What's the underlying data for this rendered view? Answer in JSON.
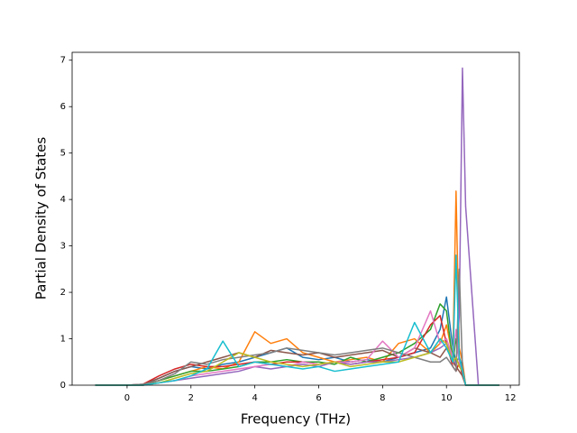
{
  "chart_data": {
    "type": "line",
    "xlabel": "Frequency (THz)",
    "ylabel": "Partial Density of States",
    "xlim": [
      -1.72,
      12.28
    ],
    "ylim": [
      0,
      7.17
    ],
    "xticks": [
      0,
      2,
      4,
      6,
      8,
      10,
      12
    ],
    "yticks": [
      0,
      1,
      2,
      3,
      4,
      5,
      6,
      7
    ],
    "x": [
      -1,
      -0.5,
      0,
      0.5,
      1,
      1.5,
      2,
      2.5,
      3,
      3.5,
      4,
      4.5,
      5,
      5.5,
      6,
      6.5,
      7,
      7.5,
      8,
      8.5,
      9,
      9.5,
      9.8,
      10,
      10.2,
      10.3,
      10.4,
      10.5,
      10.6,
      11,
      11.65
    ],
    "series": [
      {
        "color": "#1f77b4",
        "values": [
          0,
          0,
          0,
          0.02,
          0.15,
          0.3,
          0.4,
          0.35,
          0.45,
          0.5,
          0.6,
          0.7,
          0.8,
          0.6,
          0.55,
          0.6,
          0.5,
          0.55,
          0.5,
          0.6,
          0.7,
          0.8,
          1.2,
          1.9,
          0.8,
          0.5,
          0.6,
          0.4,
          0,
          0,
          0
        ]
      },
      {
        "color": "#ff7f0e",
        "values": [
          0,
          0,
          0,
          0.01,
          0.1,
          0.2,
          0.3,
          0.4,
          0.35,
          0.5,
          1.15,
          0.9,
          1.0,
          0.7,
          0.6,
          0.5,
          0.55,
          0.6,
          0.5,
          0.9,
          1.0,
          0.7,
          0.9,
          1.3,
          0.6,
          4.18,
          0.8,
          0.5,
          0,
          0,
          0
        ]
      },
      {
        "color": "#2ca02c",
        "values": [
          0,
          0,
          0,
          0,
          0.1,
          0.2,
          0.3,
          0.3,
          0.35,
          0.4,
          0.5,
          0.5,
          0.55,
          0.5,
          0.5,
          0.45,
          0.6,
          0.5,
          0.6,
          0.7,
          0.9,
          1.2,
          1.75,
          1.6,
          0.5,
          1.0,
          0.6,
          0.3,
          0,
          0,
          0
        ]
      },
      {
        "color": "#d62728",
        "values": [
          0,
          0,
          0,
          0.02,
          0.2,
          0.35,
          0.45,
          0.4,
          0.4,
          0.45,
          0.5,
          0.45,
          0.5,
          0.5,
          0.45,
          0.5,
          0.45,
          0.5,
          0.55,
          0.6,
          0.7,
          1.3,
          1.5,
          0.9,
          0.4,
          0.3,
          0.5,
          0.2,
          0,
          0,
          0
        ]
      },
      {
        "color": "#9467bd",
        "values": [
          0,
          0,
          0,
          0,
          0.05,
          0.1,
          0.15,
          0.2,
          0.25,
          0.3,
          0.4,
          0.35,
          0.4,
          0.45,
          0.4,
          0.5,
          0.45,
          0.5,
          0.5,
          0.55,
          0.6,
          0.7,
          0.8,
          0.9,
          0.6,
          0.4,
          1.5,
          6.83,
          3.85,
          0,
          0
        ]
      },
      {
        "color": "#8c564b",
        "values": [
          0,
          0,
          0,
          0.01,
          0.15,
          0.3,
          0.4,
          0.5,
          0.6,
          0.7,
          0.6,
          0.75,
          0.7,
          0.65,
          0.7,
          0.6,
          0.65,
          0.7,
          0.75,
          0.6,
          0.8,
          0.7,
          0.6,
          0.8,
          0.5,
          0.4,
          0.3,
          0.2,
          0,
          0,
          0
        ]
      },
      {
        "color": "#e377c2",
        "values": [
          0,
          0,
          0,
          0,
          0.05,
          0.1,
          0.2,
          0.25,
          0.3,
          0.35,
          0.4,
          0.45,
          0.4,
          0.5,
          0.45,
          0.5,
          0.5,
          0.55,
          0.95,
          0.6,
          0.8,
          1.6,
          0.9,
          1.0,
          0.6,
          1.2,
          0.5,
          0.3,
          0,
          0,
          0
        ]
      },
      {
        "color": "#7f7f7f",
        "values": [
          0,
          0,
          0,
          0.02,
          0.1,
          0.25,
          0.5,
          0.45,
          0.55,
          0.6,
          0.65,
          0.7,
          0.8,
          0.75,
          0.7,
          0.65,
          0.7,
          0.75,
          0.8,
          0.7,
          0.6,
          0.5,
          0.5,
          0.6,
          0.4,
          0.3,
          2.5,
          0.4,
          0,
          0,
          0
        ]
      },
      {
        "color": "#bcbd22",
        "values": [
          0,
          0,
          0,
          0,
          0.05,
          0.15,
          0.25,
          0.3,
          0.5,
          0.7,
          0.6,
          0.5,
          0.45,
          0.4,
          0.45,
          0.5,
          0.4,
          0.45,
          0.5,
          0.5,
          0.6,
          0.7,
          1.0,
          0.9,
          0.5,
          0.6,
          0.4,
          0.3,
          0,
          0,
          0
        ]
      },
      {
        "color": "#17becf",
        "values": [
          0,
          0,
          0,
          0,
          0.05,
          0.1,
          0.2,
          0.35,
          0.95,
          0.4,
          0.5,
          0.45,
          0.4,
          0.35,
          0.4,
          0.3,
          0.35,
          0.4,
          0.45,
          0.5,
          1.35,
          0.7,
          1.0,
          0.8,
          0.5,
          2.8,
          0.6,
          0.3,
          0,
          0,
          0
        ]
      }
    ]
  }
}
